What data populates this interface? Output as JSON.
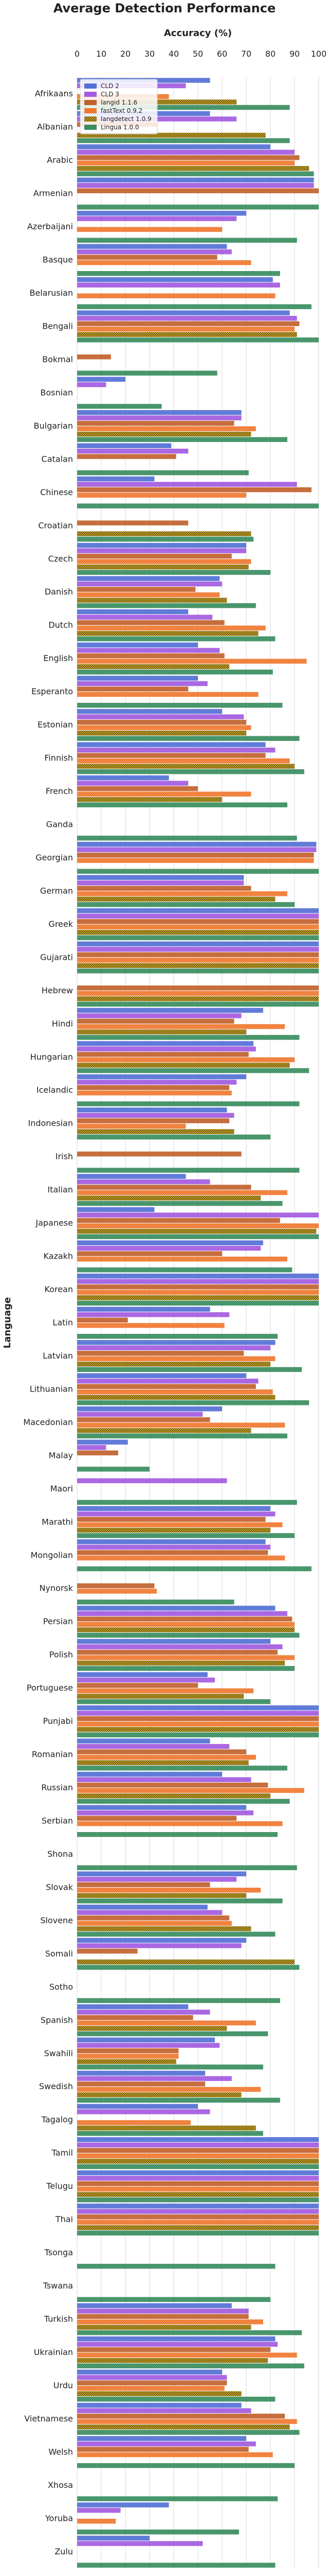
{
  "chart_data": {
    "type": "bar",
    "orientation": "horizontal",
    "title": "Average Detection Performance",
    "xlabel": "Accuracy (%)",
    "ylabel": "Language",
    "xlim": [
      0,
      100
    ],
    "xticks": [
      0,
      10,
      20,
      30,
      40,
      50,
      60,
      70,
      80,
      90,
      100
    ],
    "x_axis_position": "top",
    "grid": true,
    "legend_position": "top-left",
    "categories": [
      "Afrikaans",
      "Albanian",
      "Arabic",
      "Armenian",
      "Azerbaijani",
      "Basque",
      "Belarusian",
      "Bengali",
      "Bokmal",
      "Bosnian",
      "Bulgarian",
      "Catalan",
      "Chinese",
      "Croatian",
      "Czech",
      "Danish",
      "Dutch",
      "English",
      "Esperanto",
      "Estonian",
      "Finnish",
      "French",
      "Ganda",
      "Georgian",
      "German",
      "Greek",
      "Gujarati",
      "Hebrew",
      "Hindi",
      "Hungarian",
      "Icelandic",
      "Indonesian",
      "Irish",
      "Italian",
      "Japanese",
      "Kazakh",
      "Korean",
      "Latin",
      "Latvian",
      "Lithuanian",
      "Macedonian",
      "Malay",
      "Maori",
      "Marathi",
      "Mongolian",
      "Nynorsk",
      "Persian",
      "Polish",
      "Portuguese",
      "Punjabi",
      "Romanian",
      "Russian",
      "Serbian",
      "Shona",
      "Slovak",
      "Slovene",
      "Somali",
      "Sotho",
      "Spanish",
      "Swahili",
      "Swedish",
      "Tagalog",
      "Tamil",
      "Telugu",
      "Thai",
      "Tsonga",
      "Tswana",
      "Turkish",
      "Ukrainian",
      "Urdu",
      "Vietnamese",
      "Welsh",
      "Xhosa",
      "Yoruba",
      "Zulu"
    ],
    "series": [
      {
        "name": "CLD 2",
        "color": "#5470d6",
        "pattern": "solid",
        "values": [
          55,
          55,
          80,
          98,
          70,
          62,
          81,
          88,
          null,
          20,
          68,
          39,
          32,
          null,
          70,
          59,
          46,
          50,
          50,
          60,
          78,
          38,
          null,
          99,
          69,
          100,
          100,
          null,
          77,
          73,
          70,
          62,
          null,
          45,
          32,
          77,
          100,
          55,
          82,
          70,
          60,
          21,
          null,
          80,
          78,
          null,
          82,
          80,
          54,
          100,
          55,
          60,
          70,
          null,
          70,
          54,
          70,
          null,
          46,
          57,
          53,
          50,
          100,
          100,
          100,
          null,
          null,
          64,
          82,
          60,
          68,
          70,
          null,
          38,
          30
        ]
      },
      {
        "name": "CLD 3",
        "color": "#a35be0",
        "pattern": "solid",
        "values": [
          45,
          66,
          90,
          98,
          66,
          64,
          84,
          91,
          null,
          12,
          68,
          46,
          91,
          null,
          70,
          60,
          56,
          59,
          54,
          69,
          82,
          46,
          null,
          99,
          69,
          100,
          100,
          null,
          68,
          74,
          66,
          65,
          null,
          55,
          100,
          76,
          100,
          63,
          80,
          75,
          52,
          12,
          62,
          82,
          80,
          null,
          87,
          85,
          57,
          100,
          63,
          72,
          73,
          null,
          66,
          60,
          68,
          null,
          55,
          59,
          64,
          55,
          100,
          100,
          100,
          null,
          null,
          71,
          83,
          62,
          72,
          74,
          null,
          18,
          52
        ]
      },
      {
        "name": "langid 1.1.6",
        "color": "#c1622e",
        "pattern": "solid",
        "values": [
          null,
          33,
          92,
          100,
          null,
          58,
          null,
          92,
          14,
          null,
          65,
          41,
          97,
          46,
          64,
          49,
          61,
          61,
          46,
          70,
          78,
          50,
          null,
          98,
          72,
          100,
          100,
          100,
          65,
          71,
          63,
          63,
          68,
          72,
          84,
          60,
          100,
          21,
          69,
          74,
          55,
          17,
          null,
          78,
          79,
          32,
          89,
          83,
          50,
          100,
          70,
          79,
          66,
          null,
          55,
          63,
          25,
          null,
          48,
          42,
          53,
          null,
          100,
          100,
          100,
          null,
          null,
          71,
          80,
          62,
          86,
          71,
          null,
          null,
          null
        ]
      },
      {
        "name": "fastText 0.9.2",
        "color": "#f07830",
        "pattern": "solid",
        "values": [
          38,
          null,
          90,
          null,
          60,
          72,
          82,
          90,
          null,
          null,
          74,
          null,
          70,
          null,
          72,
          59,
          78,
          95,
          75,
          72,
          88,
          72,
          null,
          98,
          87,
          100,
          100,
          100,
          86,
          90,
          64,
          45,
          null,
          87,
          100,
          87,
          100,
          61,
          82,
          81,
          86,
          null,
          null,
          85,
          86,
          33,
          90,
          90,
          73,
          100,
          74,
          94,
          85,
          null,
          76,
          64,
          null,
          null,
          74,
          42,
          76,
          47,
          100,
          100,
          100,
          null,
          null,
          77,
          91,
          61,
          91,
          81,
          null,
          16,
          null
        ]
      },
      {
        "name": "langdetect 1.0.9",
        "color": "#d4aa1a",
        "pattern": "hatched",
        "values": [
          66,
          78,
          96,
          null,
          null,
          null,
          null,
          91,
          null,
          null,
          72,
          null,
          null,
          72,
          71,
          62,
          75,
          63,
          null,
          70,
          90,
          60,
          null,
          null,
          82,
          100,
          100,
          100,
          70,
          88,
          null,
          65,
          null,
          76,
          99,
          null,
          100,
          null,
          80,
          82,
          72,
          null,
          null,
          80,
          null,
          null,
          90,
          86,
          69,
          100,
          71,
          80,
          null,
          null,
          70,
          72,
          90,
          null,
          62,
          41,
          68,
          74,
          100,
          100,
          100,
          null,
          null,
          72,
          79,
          68,
          88,
          null,
          null,
          null,
          null
        ]
      },
      {
        "name": "Lingua 1.0.0",
        "color": "#3a8d60",
        "pattern": "solid",
        "values": [
          88,
          88,
          98,
          100,
          91,
          84,
          97,
          100,
          58,
          35,
          87,
          71,
          100,
          73,
          80,
          74,
          82,
          81,
          85,
          92,
          94,
          87,
          91,
          100,
          90,
          100,
          100,
          100,
          92,
          96,
          92,
          80,
          92,
          85,
          100,
          89,
          100,
          83,
          93,
          96,
          87,
          30,
          91,
          90,
          97,
          65,
          92,
          90,
          80,
          100,
          87,
          88,
          83,
          91,
          85,
          82,
          92,
          84,
          79,
          77,
          84,
          77,
          100,
          100,
          100,
          82,
          80,
          93,
          94,
          82,
          92,
          90,
          83,
          67,
          82
        ]
      }
    ]
  }
}
